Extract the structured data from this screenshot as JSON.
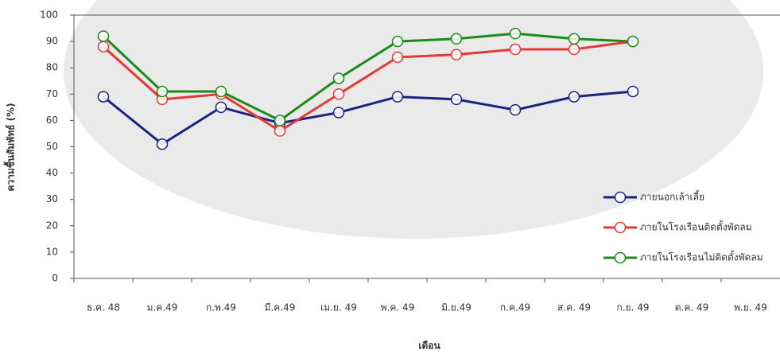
{
  "chart_data": {
    "type": "line",
    "x_label": "เดือน",
    "y_label": "ความชื้นสัมพัทธ์ (%)",
    "categories": [
      "ธ.ค. 48",
      "ม.ค.49",
      "ก.พ.49",
      "มี.ค.49",
      "เม.ย. 49",
      "พ.ค. 49",
      "มิ.ย.49",
      "ก.ค.49",
      "ส.ค. 49",
      "ก.ย. 49",
      "ต.ค. 49",
      "พ.ย. 49"
    ],
    "series": [
      {
        "name": "ภายนอกเล้าเลี้ย",
        "color": "#1a237e",
        "values": [
          69,
          51,
          65,
          59,
          63,
          69,
          68,
          64,
          69,
          71,
          null,
          null
        ]
      },
      {
        "name": "ภายในโรงเรือนติดตั้งพัดลม",
        "color": "#e53935",
        "values": [
          88,
          68,
          70,
          56,
          70,
          84,
          85,
          87,
          87,
          90,
          null,
          null
        ]
      },
      {
        "name": "ภายในโรงเรือนไม่ติดตั้งพัดลม",
        "color": "#1b8a1b",
        "values": [
          92,
          71,
          71,
          60,
          76,
          90,
          91,
          93,
          91,
          90,
          null,
          null
        ]
      }
    ],
    "ylim": [
      0,
      100
    ],
    "yticks": [
      0,
      10,
      20,
      30,
      40,
      50,
      60,
      70,
      80,
      90,
      100
    ],
    "legend": "lower right",
    "grid": false
  }
}
